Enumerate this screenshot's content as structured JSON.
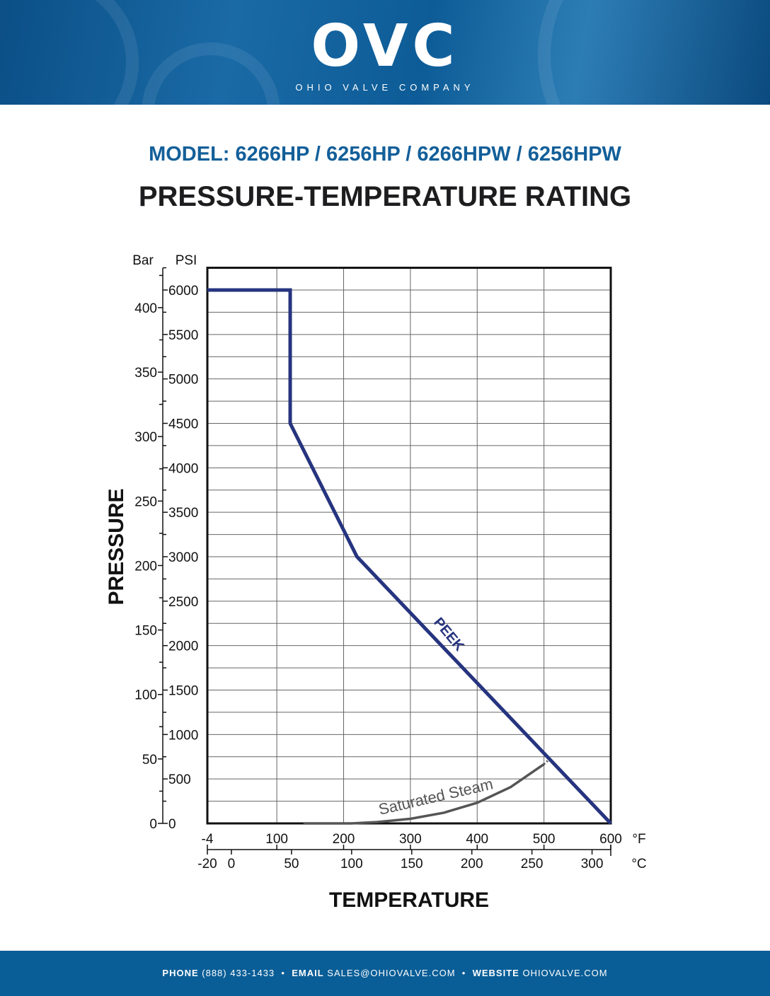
{
  "header": {
    "logo": "OVC",
    "logo_subtitle": "OHIO VALVE COMPANY"
  },
  "model": "MODEL: 6266HP / 6256HP / 6266HPW / 6256HPW",
  "title": "PRESSURE-TEMPERATURE RATING",
  "footer": {
    "phone_label": "PHONE",
    "phone": "(888) 433-1433",
    "email_label": "EMAIL",
    "email": "SALES@OHIOVALVE.COM",
    "website_label": "WEBSITE",
    "website": "OHIOVALVE.COM",
    "separator": "•"
  },
  "chart_data": {
    "type": "line",
    "xlabel": "TEMPERATURE",
    "ylabel": "PRESSURE",
    "x_unit": "°F",
    "x2_unit": "°C",
    "y_unit": "PSI",
    "y2_unit": "Bar",
    "xlim": [
      -4,
      600
    ],
    "ylim": [
      0,
      6250
    ],
    "x_ticks": [
      -4,
      100,
      200,
      300,
      400,
      500,
      600
    ],
    "x2_ticks": [
      -20,
      0,
      50,
      100,
      150,
      200,
      250,
      300
    ],
    "y_ticks": [
      0,
      500,
      1000,
      1500,
      2000,
      2500,
      3000,
      3500,
      4000,
      4500,
      5000,
      5500,
      6000
    ],
    "y2_ticks": [
      0,
      50,
      100,
      150,
      200,
      250,
      300,
      350,
      400
    ],
    "grid": true,
    "series": [
      {
        "name": "PEEK",
        "color": "#26347f",
        "x": [
          -4,
          120,
          120,
          220,
          600
        ],
        "y": [
          6000,
          6000,
          4500,
          3000,
          0
        ]
      },
      {
        "name": "Saturated Steam",
        "color": "#555555",
        "x": [
          140,
          212,
          250,
          300,
          350,
          400,
          450,
          500
        ],
        "y": [
          0,
          0,
          15,
          52,
          120,
          232,
          408,
          666
        ],
        "dotted_extension": {
          "x": [
            500,
            510
          ],
          "y": [
            666,
            735
          ]
        }
      }
    ]
  }
}
